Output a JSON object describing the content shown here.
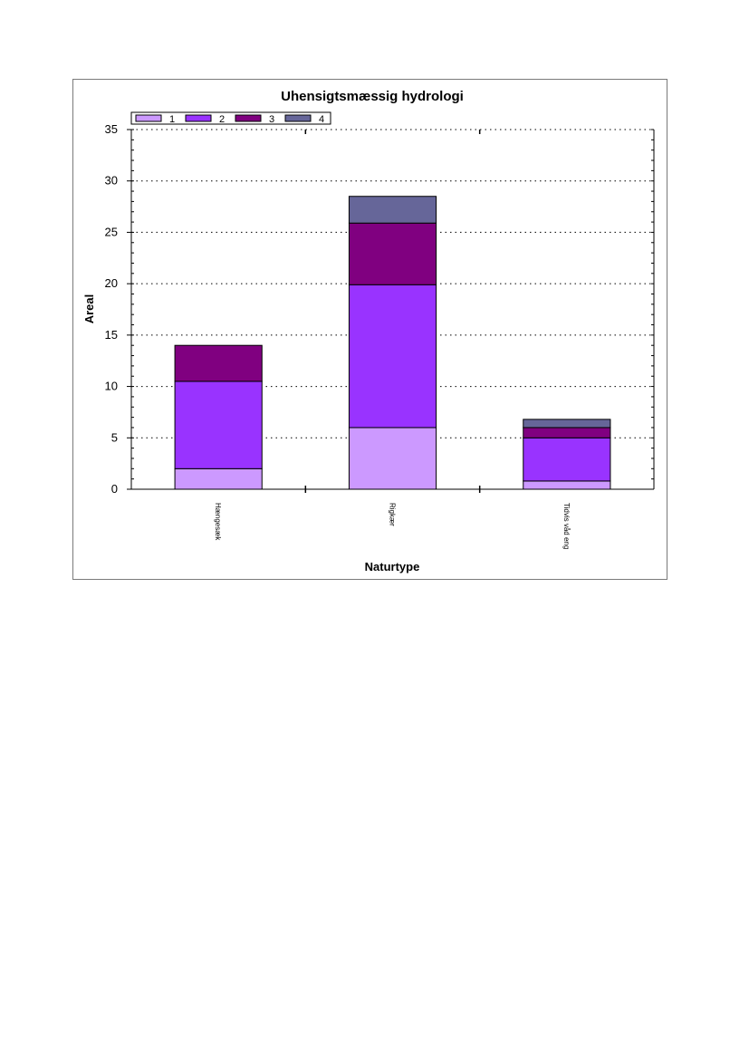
{
  "chart_data": {
    "type": "bar",
    "stacked": true,
    "title": "Uhensigtsmæssig hydrologi",
    "xlabel": "Naturtype",
    "ylabel": "Areal",
    "ylim": [
      0,
      35
    ],
    "yticks": [
      0,
      5,
      10,
      15,
      20,
      25,
      30,
      35
    ],
    "grid": true,
    "legend_placement": "top-left",
    "categories": [
      "Hængesæk",
      "Rigkær",
      "Tidvis våd eng"
    ],
    "series": [
      {
        "name": "1",
        "color": "#cc99ff",
        "values": [
          2.0,
          6.0,
          0.8
        ]
      },
      {
        "name": "2",
        "color": "#9933ff",
        "values": [
          8.5,
          13.9,
          4.2
        ]
      },
      {
        "name": "3",
        "color": "#800080",
        "values": [
          3.5,
          6.0,
          1.0
        ]
      },
      {
        "name": "4",
        "color": "#666699",
        "values": [
          0,
          2.6,
          0.8
        ]
      }
    ]
  }
}
